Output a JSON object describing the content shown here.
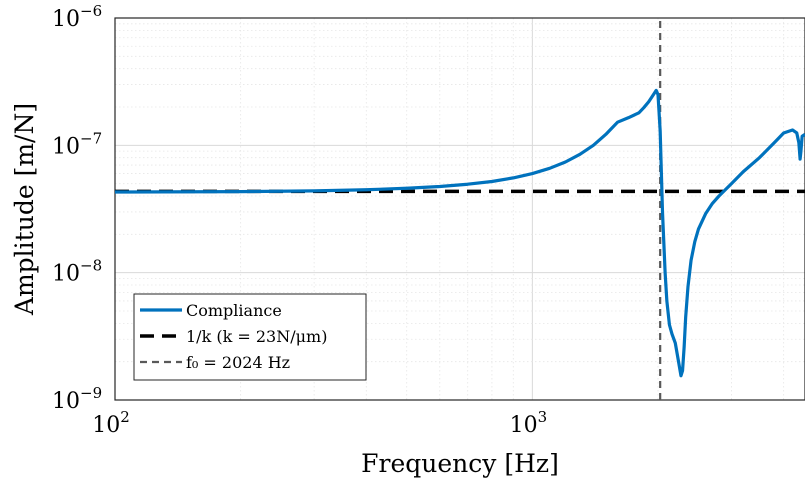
{
  "chart_data": {
    "type": "line",
    "xlabel": "Frequency [Hz]",
    "ylabel": "Amplitude [m/N]",
    "x_scale": "log",
    "y_scale": "log",
    "xlim": [
      100,
      4500
    ],
    "ylim": [
      1e-09,
      1e-06
    ],
    "grid": true,
    "legend_position": "bottom-left",
    "x_ticks": [
      {
        "value": 100,
        "base": "10",
        "exp": "2"
      },
      {
        "value": 1000,
        "base": "10",
        "exp": "3"
      }
    ],
    "y_ticks": [
      {
        "value": 1e-09,
        "base": "10",
        "exp": "−9"
      },
      {
        "value": 1e-08,
        "base": "10",
        "exp": "−8"
      },
      {
        "value": 1e-07,
        "base": "10",
        "exp": "−7"
      },
      {
        "value": 1e-06,
        "base": "10",
        "exp": "−6"
      }
    ],
    "series": [
      {
        "name": "Compliance",
        "color": "#0072BD",
        "style": "solid",
        "x": [
          100,
          200,
          300,
          400,
          500,
          600,
          700,
          800,
          900,
          1000,
          1100,
          1200,
          1300,
          1400,
          1500,
          1600,
          1700,
          1800,
          1850,
          1900,
          1950,
          1980,
          2000,
          2024,
          2050,
          2080,
          2100,
          2130,
          2160,
          2200,
          2240,
          2270,
          2290,
          2310,
          2330,
          2360,
          2400,
          2450,
          2500,
          2600,
          2700,
          2800,
          3000,
          3200,
          3500,
          3800,
          4000,
          4200,
          4300,
          4350,
          4380,
          4400,
          4430,
          4500
        ],
        "y": [
          4.3e-08,
          4.33e-08,
          4.39e-08,
          4.48e-08,
          4.6e-08,
          4.75e-08,
          4.95e-08,
          5.2e-08,
          5.55e-08,
          6e-08,
          6.6e-08,
          7.4e-08,
          8.5e-08,
          1e-07,
          1.22e-07,
          1.52e-07,
          1.65e-07,
          1.8e-07,
          1.98e-07,
          2.2e-07,
          2.5e-07,
          2.7e-07,
          2.5e-07,
          1.3e-07,
          3e-08,
          1e-08,
          6e-09,
          3.9e-09,
          3.3e-09,
          2.8e-09,
          2e-09,
          1.55e-09,
          1.7e-09,
          2.6e-09,
          4.5e-09,
          7.8e-09,
          1.25e-08,
          1.75e-08,
          2.2e-08,
          2.9e-08,
          3.5e-08,
          4e-08,
          5e-08,
          6.2e-08,
          8e-08,
          1.05e-07,
          1.25e-07,
          1.32e-07,
          1.25e-07,
          1.05e-07,
          7.8e-08,
          9e-08,
          1.18e-07,
          1.22e-07
        ]
      },
      {
        "name": "1/k (k = 23N/μm)",
        "color": "#000000",
        "style": "dashed",
        "x": [
          100,
          4500
        ],
        "y": [
          4.35e-08,
          4.35e-08
        ]
      },
      {
        "name": "f₀ = 2024 Hz",
        "color": "#595959",
        "style": "dashed-vertical",
        "x": [
          2024,
          2024
        ],
        "y": [
          1e-09,
          1e-06
        ]
      }
    ]
  },
  "legend": {
    "items": [
      {
        "label": "Compliance"
      },
      {
        "label": "1/k (k = 23N/μm)"
      },
      {
        "label": "f₀ = 2024 Hz"
      }
    ]
  }
}
